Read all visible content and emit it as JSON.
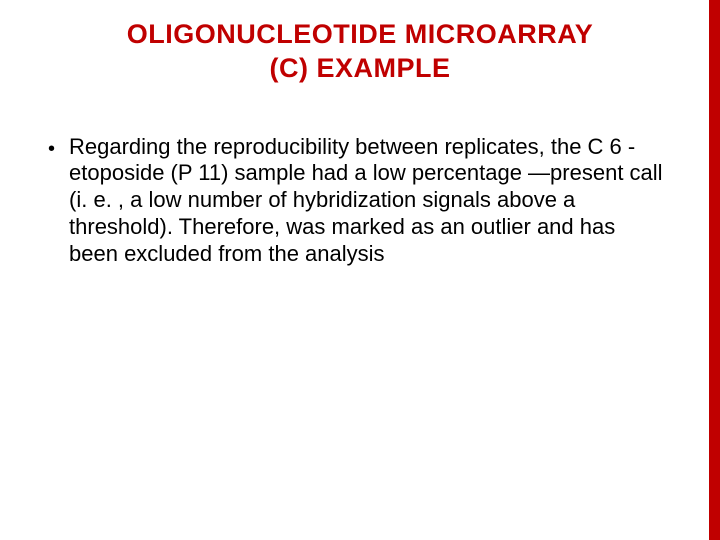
{
  "accent_color": "#c00000",
  "title_color": "#c00000",
  "text_color": "#000000",
  "title": {
    "line1": "OLIGONUCLEOTIDE MICROARRAY",
    "line2": "(C) EXAMPLE"
  },
  "bullet": {
    "marker": "•",
    "text": "Regarding the reproducibility between replicates, the C 6 -etoposide (P 11) sample had a low percentage ―present call (i. e. , a low number of hybridization signals above a threshold). Therefore, was marked as an outlier and has been excluded from the analysis"
  }
}
